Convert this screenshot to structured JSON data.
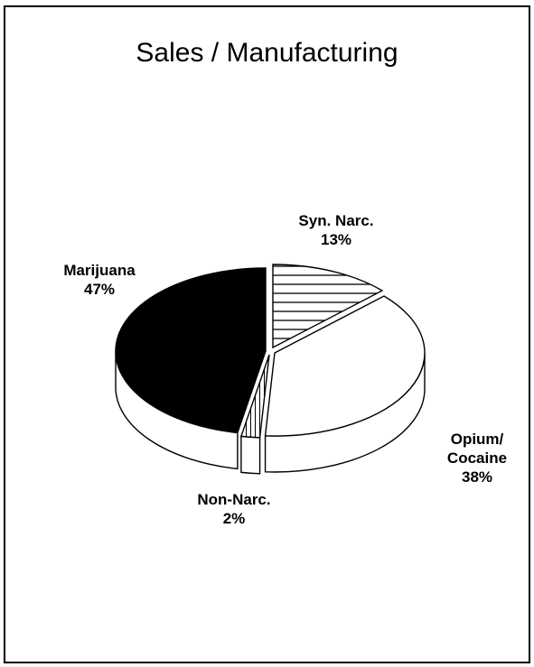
{
  "chart_data": {
    "type": "pie",
    "title": "Sales / Manufacturing",
    "slices": [
      {
        "label": "Syn. Narc.",
        "value": 13,
        "display": "13%",
        "fill": "hatch"
      },
      {
        "label": "Opium/ Cocaine",
        "label_lines": [
          "Opium/",
          "Cocaine"
        ],
        "value": 38,
        "display": "38%",
        "fill": "#ffffff"
      },
      {
        "label": "Non-Narc.",
        "value": 2,
        "display": "2%",
        "fill": "hatch"
      },
      {
        "label": "Marijuana",
        "value": 47,
        "display": "47%",
        "fill": "#000000"
      }
    ],
    "style": "3d-exploded",
    "colors": {
      "dark": "#000000",
      "light": "#ffffff",
      "outline": "#000000"
    }
  }
}
